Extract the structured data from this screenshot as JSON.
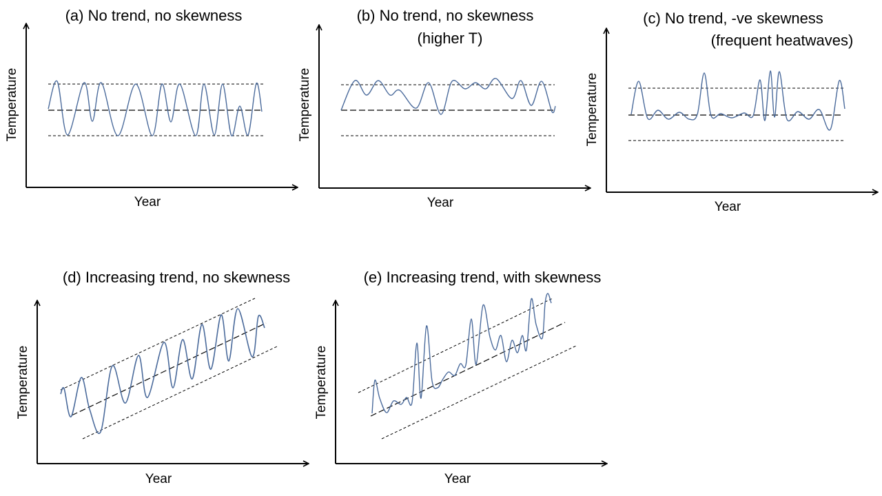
{
  "colors": {
    "signal": "#4A6A9B",
    "axis": "#000000",
    "guide": "#000000",
    "background": "#ffffff"
  },
  "panels": [
    {
      "id": "a",
      "title_lines": [
        "(a) No trend, no skewness"
      ],
      "xlabel": "Year",
      "ylabel": "Temperature"
    },
    {
      "id": "b",
      "title_lines": [
        "(b) No trend, no skewness",
        "(higher T)"
      ],
      "xlabel": "Year",
      "ylabel": "Temperature"
    },
    {
      "id": "c",
      "title_lines": [
        "(c) No trend, -ve skewness",
        "(frequent heatwaves)"
      ],
      "xlabel": "Year",
      "ylabel": "Temperature"
    },
    {
      "id": "d",
      "title_lines": [
        "(d) Increasing trend, no skewness"
      ],
      "xlabel": "Year",
      "ylabel": "Temperature"
    },
    {
      "id": "e",
      "title_lines": [
        "(e) Increasing trend, with skewness"
      ],
      "xlabel": "Year",
      "ylabel": "Temperature"
    }
  ]
}
